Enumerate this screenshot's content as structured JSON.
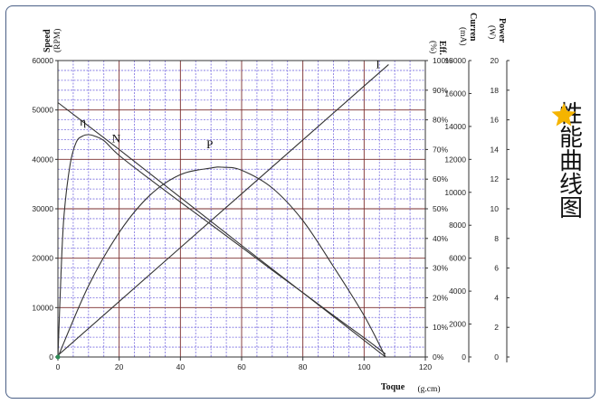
{
  "side_panel": {
    "title": "性能曲线图",
    "icon": "star-icon",
    "icon_color": "#f5b400"
  },
  "chart_data": {
    "type": "line",
    "title": "",
    "xlabel": "Toque",
    "xunit": "(g.cm)",
    "xlim": [
      0,
      120
    ],
    "x_ticks": [
      0,
      20,
      40,
      60,
      80,
      100,
      120
    ],
    "axes": {
      "speed": {
        "label": "Speed",
        "unit": "(RPM)",
        "lim": [
          0,
          60000
        ],
        "ticks": [
          0,
          10000,
          20000,
          30000,
          40000,
          50000,
          60000
        ]
      },
      "efficiency": {
        "label": "Eff.",
        "unit": "(%)",
        "lim": [
          0,
          100
        ],
        "ticks": [
          "0%",
          "10%",
          "20%",
          "30%",
          "40%",
          "50%",
          "60%",
          "70%",
          "80%",
          "90%",
          "100%"
        ]
      },
      "current": {
        "label": "Curren",
        "unit": "(mA)",
        "lim": [
          0,
          18000
        ],
        "ticks": [
          0,
          2000,
          4000,
          6000,
          8000,
          10000,
          12000,
          14000,
          16000,
          18000
        ]
      },
      "power": {
        "label": "Power",
        "unit": "(W)",
        "lim": [
          0,
          20
        ],
        "ticks": [
          0,
          2,
          4,
          6,
          8,
          10,
          12,
          14,
          16,
          18,
          20
        ]
      }
    },
    "grid": true,
    "grid_colors": {
      "major": "#7a2d2d",
      "minor": "#7a6ee0"
    },
    "series": [
      {
        "name": "N",
        "axis": "speed",
        "color": "#333333",
        "x": [
          0,
          20,
          40,
          60,
          80,
          107
        ],
        "y": [
          51500,
          42000,
          32300,
          22600,
          13000,
          0
        ]
      },
      {
        "name": "I",
        "axis": "current",
        "color": "#333333",
        "x": [
          0,
          20,
          40,
          60,
          80,
          100,
          108
        ],
        "y": [
          100,
          3370,
          6640,
          9910,
          13180,
          16450,
          17760
        ]
      },
      {
        "name": "P",
        "axis": "power",
        "color": "#333333",
        "x": [
          0,
          10,
          20,
          30,
          40,
          50,
          54,
          60,
          70,
          80,
          90,
          100,
          107
        ],
        "y": [
          0,
          4.8,
          8.4,
          10.9,
          12.3,
          12.75,
          12.8,
          12.6,
          11.4,
          9.2,
          6.1,
          2.8,
          0
        ]
      },
      {
        "name": "η",
        "axis": "efficiency",
        "color": "#333333",
        "x": [
          0,
          1,
          2,
          4,
          6,
          8,
          10,
          12,
          15,
          20,
          30,
          40,
          50,
          60,
          70,
          80,
          90,
          100,
          107
        ],
        "y": [
          0,
          28,
          48,
          65,
          72.5,
          74.5,
          75,
          74.5,
          73,
          68,
          60,
          52.3,
          44.7,
          37,
          29.3,
          21.7,
          14,
          6.5,
          1
        ]
      }
    ]
  }
}
